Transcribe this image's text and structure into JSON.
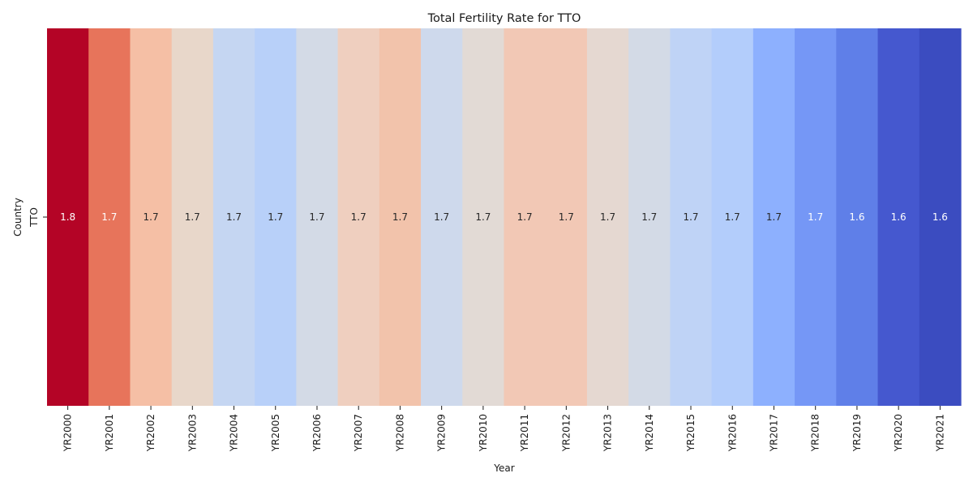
{
  "chart_data": {
    "type": "heatmap",
    "title": "Total Fertility Rate for TTO",
    "xlabel": "Year",
    "ylabel": "Country",
    "rows": [
      "TTO"
    ],
    "columns": [
      "YR2000",
      "YR2001",
      "YR2002",
      "YR2003",
      "YR2004",
      "YR2005",
      "YR2006",
      "YR2007",
      "YR2008",
      "YR2009",
      "YR2010",
      "YR2011",
      "YR2012",
      "YR2013",
      "YR2014",
      "YR2015",
      "YR2016",
      "YR2017",
      "YR2018",
      "YR2019",
      "YR2020",
      "YR2021"
    ],
    "values": [
      [
        1.8,
        1.7,
        1.7,
        1.7,
        1.7,
        1.7,
        1.7,
        1.7,
        1.7,
        1.7,
        1.7,
        1.7,
        1.7,
        1.7,
        1.7,
        1.7,
        1.7,
        1.7,
        1.7,
        1.6,
        1.6,
        1.6
      ]
    ],
    "cell_colors": [
      "#b40426",
      "#e7745b",
      "#f5bfa5",
      "#e8d7ca",
      "#c5d6f2",
      "#b8d0f9",
      "#d3dae6",
      "#efcfbf",
      "#f2c3ab",
      "#ced9ec",
      "#e2dad5",
      "#f2c8b5",
      "#f2c8b5",
      "#e5d8d1",
      "#d3dae6",
      "#bfd3f6",
      "#b3cdfb",
      "#8db0fe",
      "#7597f6",
      "#5f7fe8",
      "#4558cf",
      "#3b4cc0"
    ],
    "label_colors": [
      "#ffffff",
      "#ffffff",
      "#262626",
      "#262626",
      "#262626",
      "#262626",
      "#262626",
      "#262626",
      "#262626",
      "#262626",
      "#262626",
      "#262626",
      "#262626",
      "#262626",
      "#262626",
      "#262626",
      "#262626",
      "#262626",
      "#ffffff",
      "#ffffff",
      "#ffffff",
      "#ffffff"
    ],
    "colormap": "coolwarm",
    "colorbar": false,
    "grid": false
  }
}
